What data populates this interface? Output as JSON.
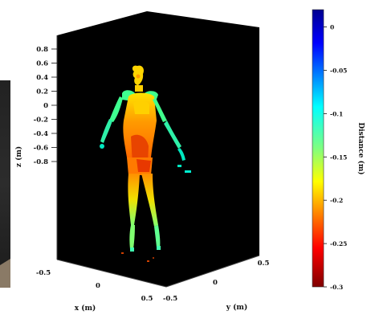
{
  "chart_data": {
    "type": "scatter",
    "projection": "3d",
    "title": "",
    "axes": {
      "z": {
        "label": "z (m)",
        "ticks": [
          "0.8",
          "0.6",
          "0.4",
          "0.2",
          "0",
          "-0.2",
          "-0.4",
          "-0.6",
          "-0.8"
        ],
        "range": [
          -0.8,
          0.9
        ]
      },
      "x": {
        "label": "x (m)",
        "ticks": [
          "-0.5",
          "0",
          "0.5"
        ],
        "range": [
          -0.5,
          0.5
        ]
      },
      "y": {
        "label": "y (m)",
        "ticks": [
          "-0.5",
          "0",
          "0.5"
        ],
        "range": [
          -0.5,
          0.5
        ]
      }
    },
    "colorbar": {
      "label": "Distance (m)",
      "ticks": [
        "0",
        "-0.05",
        "-0.1",
        "-0.15",
        "-0.2",
        "-0.25",
        "-0.3"
      ],
      "tick_values": [
        0,
        -0.05,
        -0.1,
        -0.15,
        -0.2,
        -0.25,
        -0.3
      ],
      "range": [
        -0.3,
        0.02
      ],
      "colormap": "jet",
      "high_color": "#00008f",
      "low_color": "#7f0000"
    },
    "background": "#000000",
    "grid": false,
    "subject": "point cloud of a standing human figure"
  }
}
